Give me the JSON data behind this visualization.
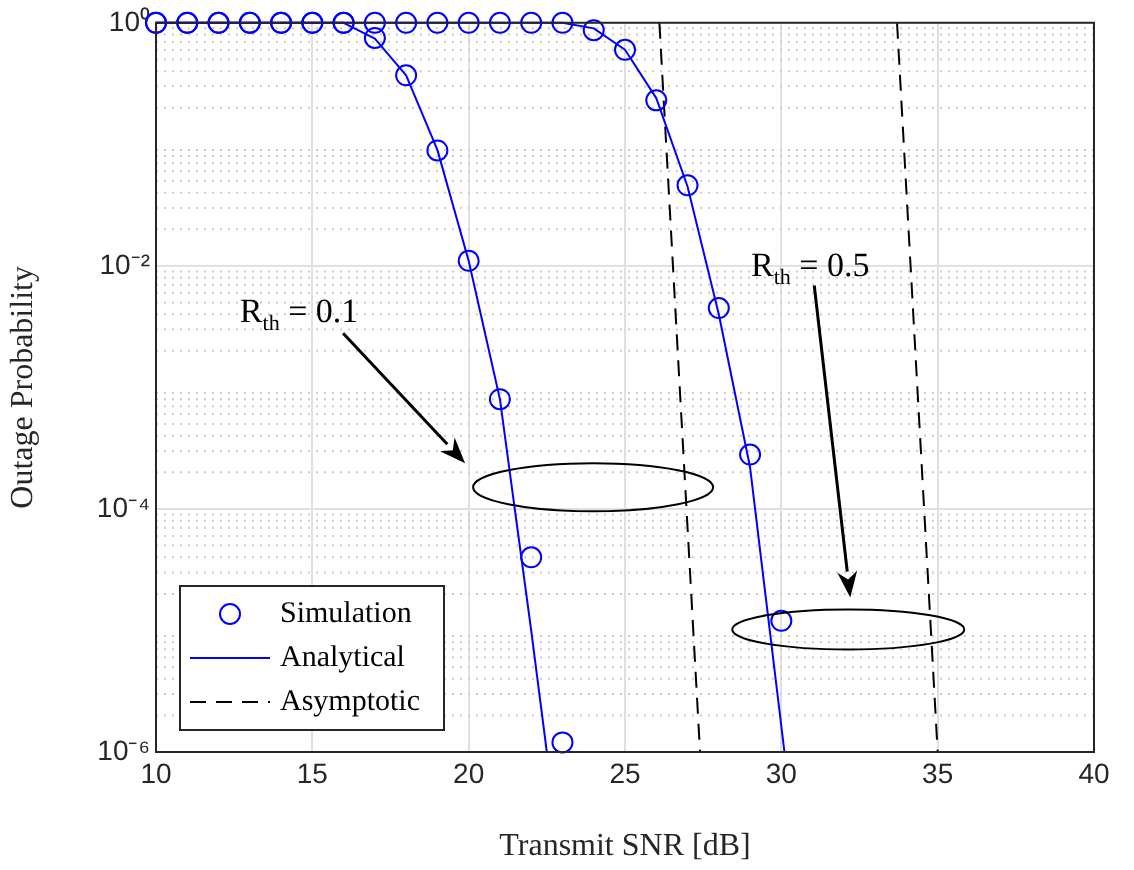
{
  "chart_data": {
    "type": "line",
    "xlabel": "Transmit SNR [dB]",
    "ylabel": "Outage Probability",
    "xlim": [
      10,
      40
    ],
    "xticks": [
      10,
      15,
      20,
      25,
      30,
      35,
      40
    ],
    "ylim": [
      1e-06,
      1
    ],
    "yticks": [
      {
        "value": 1e-06,
        "label": "10⁻⁶"
      },
      {
        "value": 0.0001,
        "label": "10⁻⁴"
      },
      {
        "value": 0.01,
        "label": "10⁻²"
      },
      {
        "value": 1,
        "label": "10⁰"
      }
    ],
    "log": "y",
    "grid": true,
    "legend": "bottom left",
    "series": [
      {
        "name": "Simulation",
        "type": "scatter",
        "marker": "circle",
        "color": "#0000ff",
        "x": [
          10,
          11,
          12,
          13,
          14,
          15,
          16,
          17,
          18,
          19,
          20,
          21,
          22,
          23
        ],
        "values": [
          1,
          1,
          1,
          1,
          1,
          1,
          1,
          0.75,
          0.37,
          0.089,
          0.011,
          0.0008,
          4e-05,
          1.2e-06
        ]
      },
      {
        "type": "scatter",
        "marker": "circle",
        "color": "#0000ff",
        "x": [
          10,
          11,
          12,
          13,
          14,
          15,
          16,
          17,
          18,
          19,
          20,
          21,
          22,
          23,
          24,
          25,
          26,
          27,
          28,
          29,
          30
        ],
        "values": [
          1,
          1,
          1,
          1,
          1,
          1,
          1,
          1,
          1,
          1,
          1,
          1,
          1,
          1,
          0.87,
          0.6,
          0.23,
          0.046,
          0.0045,
          0.00028,
          1.2e-05
        ]
      },
      {
        "name": "Analytical",
        "type": "line",
        "marker": "none",
        "line_style": "solid",
        "color": "#0000ff",
        "x": [
          10,
          11,
          12,
          13,
          14,
          15,
          16,
          17,
          18,
          19,
          20,
          21,
          22,
          22.5
        ],
        "values": [
          1,
          1,
          1,
          1,
          1,
          1,
          1,
          0.74,
          0.37,
          0.09,
          0.011,
          0.0008,
          1e-05,
          1e-06
        ]
      },
      {
        "type": "line",
        "marker": "none",
        "line_style": "solid",
        "color": "#0000ff",
        "x": [
          10,
          11,
          12,
          13,
          14,
          15,
          16,
          17,
          18,
          19,
          20,
          21,
          22,
          23,
          24,
          25,
          26,
          27,
          28,
          29,
          30.1
        ],
        "values": [
          1,
          1,
          1,
          1,
          1,
          1,
          1,
          1,
          1,
          1,
          1,
          1,
          1,
          1,
          0.9,
          0.6,
          0.24,
          0.045,
          0.004,
          0.00022,
          1e-06
        ]
      },
      {
        "name": "Asymptotic",
        "type": "line",
        "marker": "none",
        "line_style": "dashed",
        "color": "#000000",
        "x": [
          26.1,
          27.4
        ],
        "values": [
          1,
          1e-06
        ]
      },
      {
        "type": "line",
        "marker": "none",
        "line_style": "dashed",
        "color": "#000000",
        "x": [
          33.7,
          35.0
        ],
        "values": [
          1,
          1e-06
        ]
      }
    ],
    "annotations": [
      "R$_{th}$ = 0.1",
      "R$_{th}$ = 0.5"
    ]
  }
}
